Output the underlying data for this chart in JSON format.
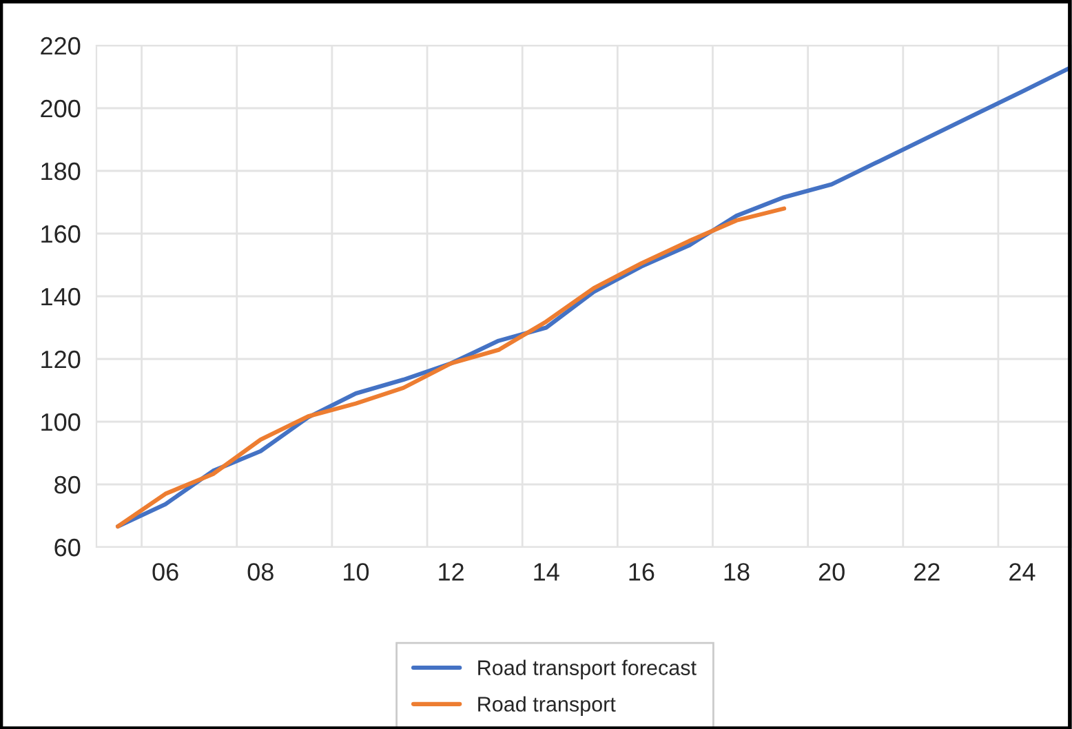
{
  "chart_data": {
    "type": "line",
    "categories": [
      null,
      "06",
      null,
      "08",
      null,
      "10",
      null,
      "12",
      null,
      "14",
      null,
      "16",
      null,
      "18",
      null,
      "20",
      null,
      "22",
      null,
      "24",
      null
    ],
    "series": [
      {
        "name": "Road transport forecast",
        "color": "#4472c4",
        "values": [
          66.6,
          73.7,
          84.3,
          90.6,
          101.4,
          109,
          113.4,
          118.6,
          125.8,
          130,
          141.4,
          149.5,
          156.2,
          165.7,
          171.6,
          175.7,
          183.1,
          190.5,
          197.9,
          205.3,
          212.8
        ]
      },
      {
        "name": "Road transport",
        "color": "#ed7d31",
        "values": [
          66.6,
          77,
          83.3,
          94.3,
          101.7,
          105.8,
          110.8,
          118.6,
          122.9,
          131.9,
          142.6,
          150.5,
          157.6,
          164.2,
          168,
          null,
          null,
          null,
          null,
          null,
          null
        ]
      }
    ],
    "ylim": [
      60,
      220
    ],
    "yticks": [
      60,
      80,
      100,
      120,
      140,
      160,
      180,
      200,
      220
    ],
    "grid": true,
    "legend": "bottom",
    "marker": "none",
    "line_style": "solid"
  }
}
